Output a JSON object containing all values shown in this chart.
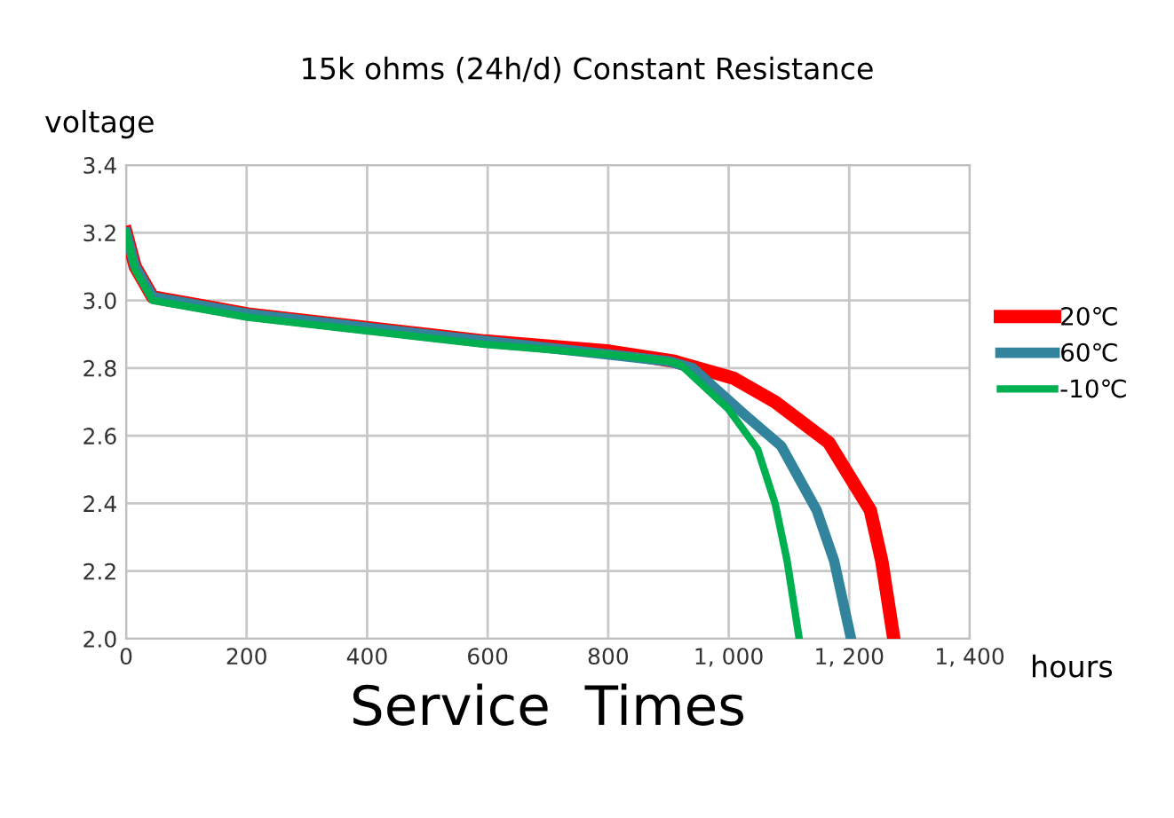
{
  "chart_data": {
    "type": "line",
    "title": "15k ohms (24h/d) Constant Resistance",
    "ylabel": "voltage",
    "xlabel": "Service  Times",
    "annotations": [
      "hours"
    ],
    "xlim": [
      0,
      1400
    ],
    "ylim": [
      2.0,
      3.4
    ],
    "xticks": [
      0,
      200,
      400,
      600,
      800,
      {
        "value": 1000,
        "label": "1, 000"
      },
      {
        "value": 1200,
        "label": "1, 200"
      },
      {
        "value": 1400,
        "label": "1, 400"
      }
    ],
    "yticks": [
      {
        "value": 2.0,
        "label": "2.0"
      },
      2.2,
      2.4,
      2.6,
      2.8,
      {
        "value": 3.0,
        "label": "3.0"
      },
      3.2,
      3.4
    ],
    "grid": true,
    "legend": "right",
    "marker": "none",
    "line_style": "solid",
    "series": [
      {
        "name": "20℃",
        "color": "#ff0000",
        "x": [
          0,
          15,
          44,
          202,
          595,
          802,
          910,
          1008,
          1077,
          1166,
          1235,
          1254,
          1274
        ],
        "values": [
          3.2,
          3.1,
          3.01,
          2.96,
          2.88,
          2.85,
          2.82,
          2.77,
          2.7,
          2.58,
          2.38,
          2.23,
          2.0
        ]
      },
      {
        "name": "60℃",
        "color": "#31849b",
        "x": [
          0,
          15,
          44,
          202,
          595,
          802,
          900,
          940,
          1028,
          1087,
          1146,
          1175,
          1203
        ],
        "values": [
          3.2,
          3.1,
          3.01,
          2.96,
          2.88,
          2.84,
          2.82,
          2.8,
          2.66,
          2.57,
          2.38,
          2.23,
          2.0
        ]
      },
      {
        "name": "-10℃",
        "color": "#00b050",
        "x": [
          0,
          15,
          44,
          202,
          595,
          802,
          900,
          920,
          999,
          1048,
          1077,
          1097,
          1117
        ],
        "values": [
          3.2,
          3.09,
          3.0,
          2.95,
          2.87,
          2.84,
          2.82,
          2.81,
          2.68,
          2.56,
          2.4,
          2.23,
          2.0
        ]
      }
    ]
  }
}
